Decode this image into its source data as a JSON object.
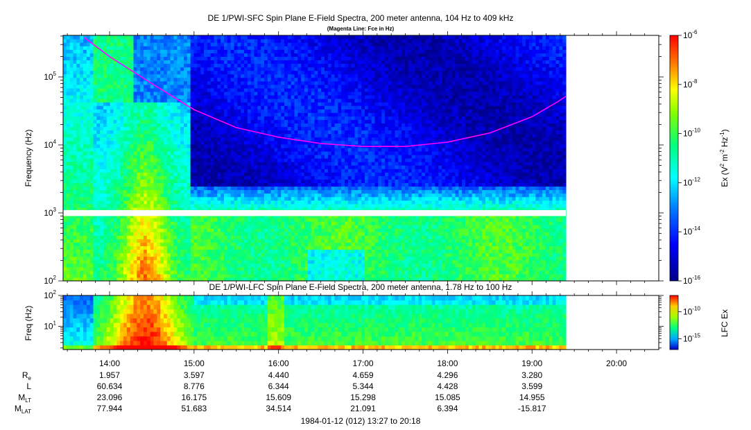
{
  "chart_data": [
    {
      "type": "heatmap",
      "title": "DE 1/PWI-SFC  Spin Plane E-Field Spectra, 200 meter antenna, 104 Hz to 409 kHz",
      "subtitle": "(Magenta Line: Fce in Hz)",
      "ylabel": "Frequency (Hz)",
      "yscale": "log",
      "ylim": [
        100,
        409000
      ],
      "y_ticks": [
        100,
        1000,
        10000,
        100000
      ],
      "y_tick_labels": [
        {
          "base": "10",
          "exp": "2"
        },
        {
          "base": "10",
          "exp": "3"
        },
        {
          "base": "10",
          "exp": "4"
        },
        {
          "base": "10",
          "exp": "5"
        }
      ],
      "data_gap_hz": [
        900,
        1100
      ],
      "colorbar": {
        "label": "Ex (V² m⁻² Hz⁻¹)",
        "label_parts": {
          "a": "Ex (V",
          "b": "2",
          "c": " m",
          "d": "-2",
          "e": " Hz",
          "f": "-1",
          "g": ")"
        },
        "range_exp": [
          -16,
          -6
        ],
        "ticks": [
          {
            "base": "10",
            "exp": "-6"
          },
          {
            "base": "10",
            "exp": "-8"
          },
          {
            "base": "10",
            "exp": "-10"
          },
          {
            "base": "10",
            "exp": "-12"
          },
          {
            "base": "10",
            "exp": "-14"
          },
          {
            "base": "10",
            "exp": "-16"
          }
        ],
        "tick_exps": [
          -6,
          -8,
          -10,
          -12,
          -14,
          -16
        ]
      },
      "series": [
        {
          "name": "Fce",
          "color": "#ff00ff",
          "x_hours": [
            13.7,
            14.0,
            14.5,
            15.0,
            15.5,
            16.0,
            16.5,
            17.0,
            17.5,
            18.0,
            18.5,
            19.0,
            19.3,
            19.4
          ],
          "y_hz": [
            380000,
            200000,
            80000,
            33000,
            18000,
            13000,
            10500,
            9500,
            9500,
            11000,
            15000,
            26000,
            43000,
            52000
          ]
        }
      ]
    },
    {
      "type": "heatmap",
      "title": "DE 1/PWI-LFC  Spin Plane E-Field Spectra, 200 meter antenna, 1.78 Hz to 100 Hz",
      "ylabel": "Freq (Hz)",
      "yscale": "log",
      "ylim": [
        1.78,
        100
      ],
      "y_ticks": [
        10,
        100
      ],
      "y_tick_labels": [
        {
          "base": "10",
          "exp": "1"
        },
        {
          "base": "10",
          "exp": "2"
        }
      ],
      "colorbar": {
        "label": "LFC Ex",
        "range_exp": [
          -17,
          -7
        ],
        "ticks": [
          {
            "base": "10",
            "exp": "-10"
          },
          {
            "base": "10",
            "exp": "-15"
          }
        ],
        "tick_exps": [
          -10,
          -15
        ]
      }
    }
  ],
  "time_axis": {
    "start_hours": 13.45,
    "end_hours": 20.5,
    "data_end_hours": 19.4,
    "ticks": [
      {
        "h": 14,
        "label": "14:00"
      },
      {
        "h": 15,
        "label": "15:00"
      },
      {
        "h": 16,
        "label": "16:00"
      },
      {
        "h": 17,
        "label": "17:00"
      },
      {
        "h": 18,
        "label": "18:00"
      },
      {
        "h": 19,
        "label": "19:00"
      },
      {
        "h": 20,
        "label": "20:00"
      }
    ],
    "range_label": "1984-01-12 (012) 13:27 to 20:18"
  },
  "ephemeris": {
    "rows": [
      {
        "label": "R",
        "sub": "e",
        "values": [
          "1.957",
          "3.597",
          "4.440",
          "4.659",
          "4.296",
          "3.280"
        ]
      },
      {
        "label": "L",
        "sub": "",
        "values": [
          "60.634",
          "8.776",
          "6.344",
          "5.344",
          "4.428",
          "3.599"
        ]
      },
      {
        "label": "M",
        "sub": "LT",
        "values": [
          "23.096",
          "16.175",
          "15.609",
          "15.298",
          "15.085",
          "14.955"
        ]
      },
      {
        "label": "M",
        "sub": "LAT",
        "values": [
          "77.944",
          "51.683",
          "34.514",
          "21.091",
          "6.394",
          "-15.817"
        ]
      }
    ],
    "columns_hours": [
      14,
      15,
      16,
      17,
      18,
      19
    ]
  }
}
